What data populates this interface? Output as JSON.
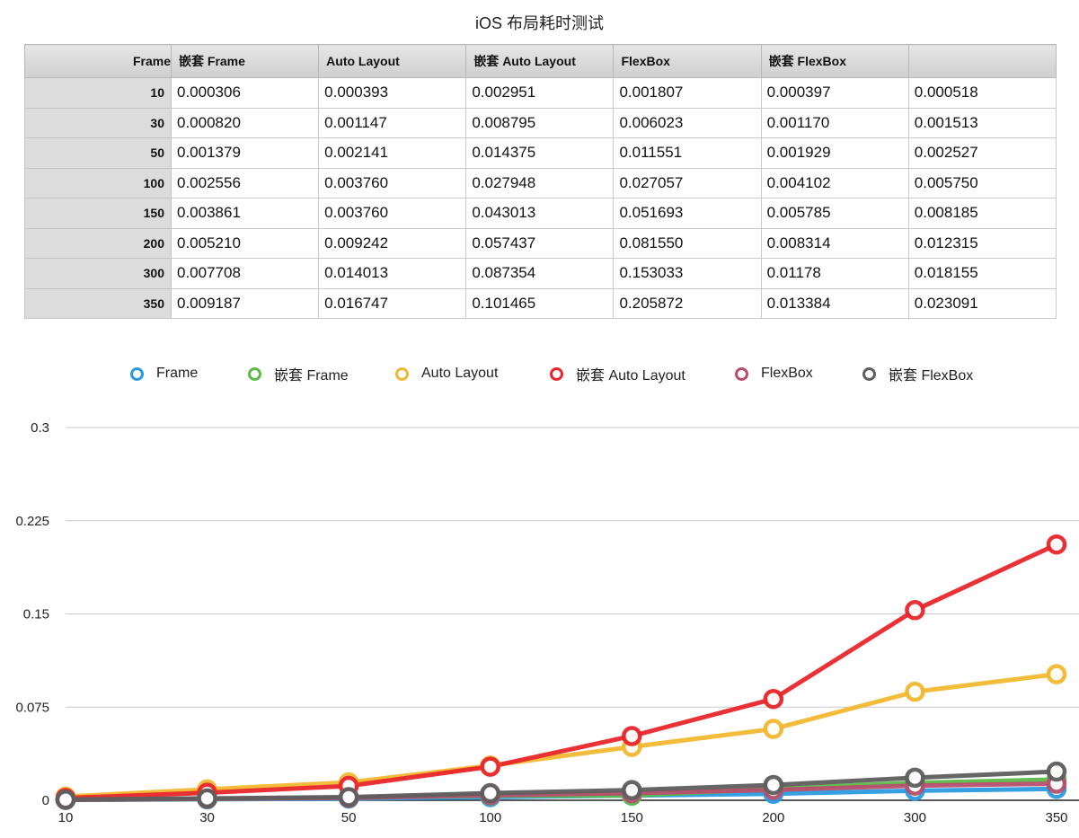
{
  "title": "iOS 布局耗时测试",
  "table": {
    "columns": [
      "Frame",
      "嵌套 Frame",
      "Auto Layout",
      "嵌套 Auto Layout",
      "FlexBox",
      "嵌套 FlexBox"
    ],
    "rows": [
      {
        "label": "10",
        "values": [
          "0.000306",
          "0.000393",
          "0.002951",
          "0.001807",
          "0.000397",
          "0.000518"
        ]
      },
      {
        "label": "30",
        "values": [
          "0.000820",
          "0.001147",
          "0.008795",
          "0.006023",
          "0.001170",
          "0.001513"
        ]
      },
      {
        "label": "50",
        "values": [
          "0.001379",
          "0.002141",
          "0.014375",
          "0.011551",
          "0.001929",
          "0.002527"
        ]
      },
      {
        "label": "100",
        "values": [
          "0.002556",
          "0.003760",
          "0.027948",
          "0.027057",
          "0.004102",
          "0.005750"
        ]
      },
      {
        "label": "150",
        "values": [
          "0.003861",
          "0.003760",
          "0.043013",
          "0.051693",
          "0.005785",
          "0.008185"
        ]
      },
      {
        "label": "200",
        "values": [
          "0.005210",
          "0.009242",
          "0.057437",
          "0.081550",
          "0.008314",
          "0.012315"
        ]
      },
      {
        "label": "300",
        "values": [
          "0.007708",
          "0.014013",
          "0.087354",
          "0.153033",
          "0.01178",
          "0.018155"
        ]
      },
      {
        "label": "350",
        "values": [
          "0.009187",
          "0.016747",
          "0.101465",
          "0.205872",
          "0.013384",
          "0.023091"
        ]
      }
    ]
  },
  "chart_data": {
    "type": "line",
    "title": "iOS 布局耗时测试",
    "xlabel": "",
    "ylabel": "",
    "categories": [
      "10",
      "30",
      "50",
      "100",
      "150",
      "200",
      "300",
      "350"
    ],
    "ylim": [
      0,
      0.3
    ],
    "yticks": [
      "0",
      "0.075",
      "0.15",
      "0.225",
      "0.3"
    ],
    "grid": true,
    "legend_position": "top",
    "series": [
      {
        "name": "Frame",
        "color": "#2a9be0",
        "values": [
          0.000306,
          0.00082,
          0.001379,
          0.002556,
          0.003861,
          0.00521,
          0.007708,
          0.009187
        ]
      },
      {
        "name": "嵌套 Frame",
        "color": "#5cb94a",
        "values": [
          0.000393,
          0.001147,
          0.002141,
          0.00376,
          0.00376,
          0.009242,
          0.014013,
          0.016747
        ]
      },
      {
        "name": "Auto Layout",
        "color": "#f2b830",
        "values": [
          0.002951,
          0.008795,
          0.014375,
          0.027948,
          0.043013,
          0.057437,
          0.087354,
          0.101465
        ]
      },
      {
        "name": "嵌套 Auto Layout",
        "color": "#e8262b",
        "values": [
          0.001807,
          0.006023,
          0.011551,
          0.027057,
          0.051693,
          0.08155,
          0.153033,
          0.205872
        ]
      },
      {
        "name": "FlexBox",
        "color": "#b84e6e",
        "values": [
          0.000397,
          0.00117,
          0.001929,
          0.004102,
          0.005785,
          0.008314,
          0.01178,
          0.013384
        ]
      },
      {
        "name": "嵌套 FlexBox",
        "color": "#5e5e5e",
        "values": [
          0.000518,
          0.001513,
          0.002527,
          0.00575,
          0.008185,
          0.012315,
          0.018155,
          0.023091
        ]
      }
    ]
  }
}
